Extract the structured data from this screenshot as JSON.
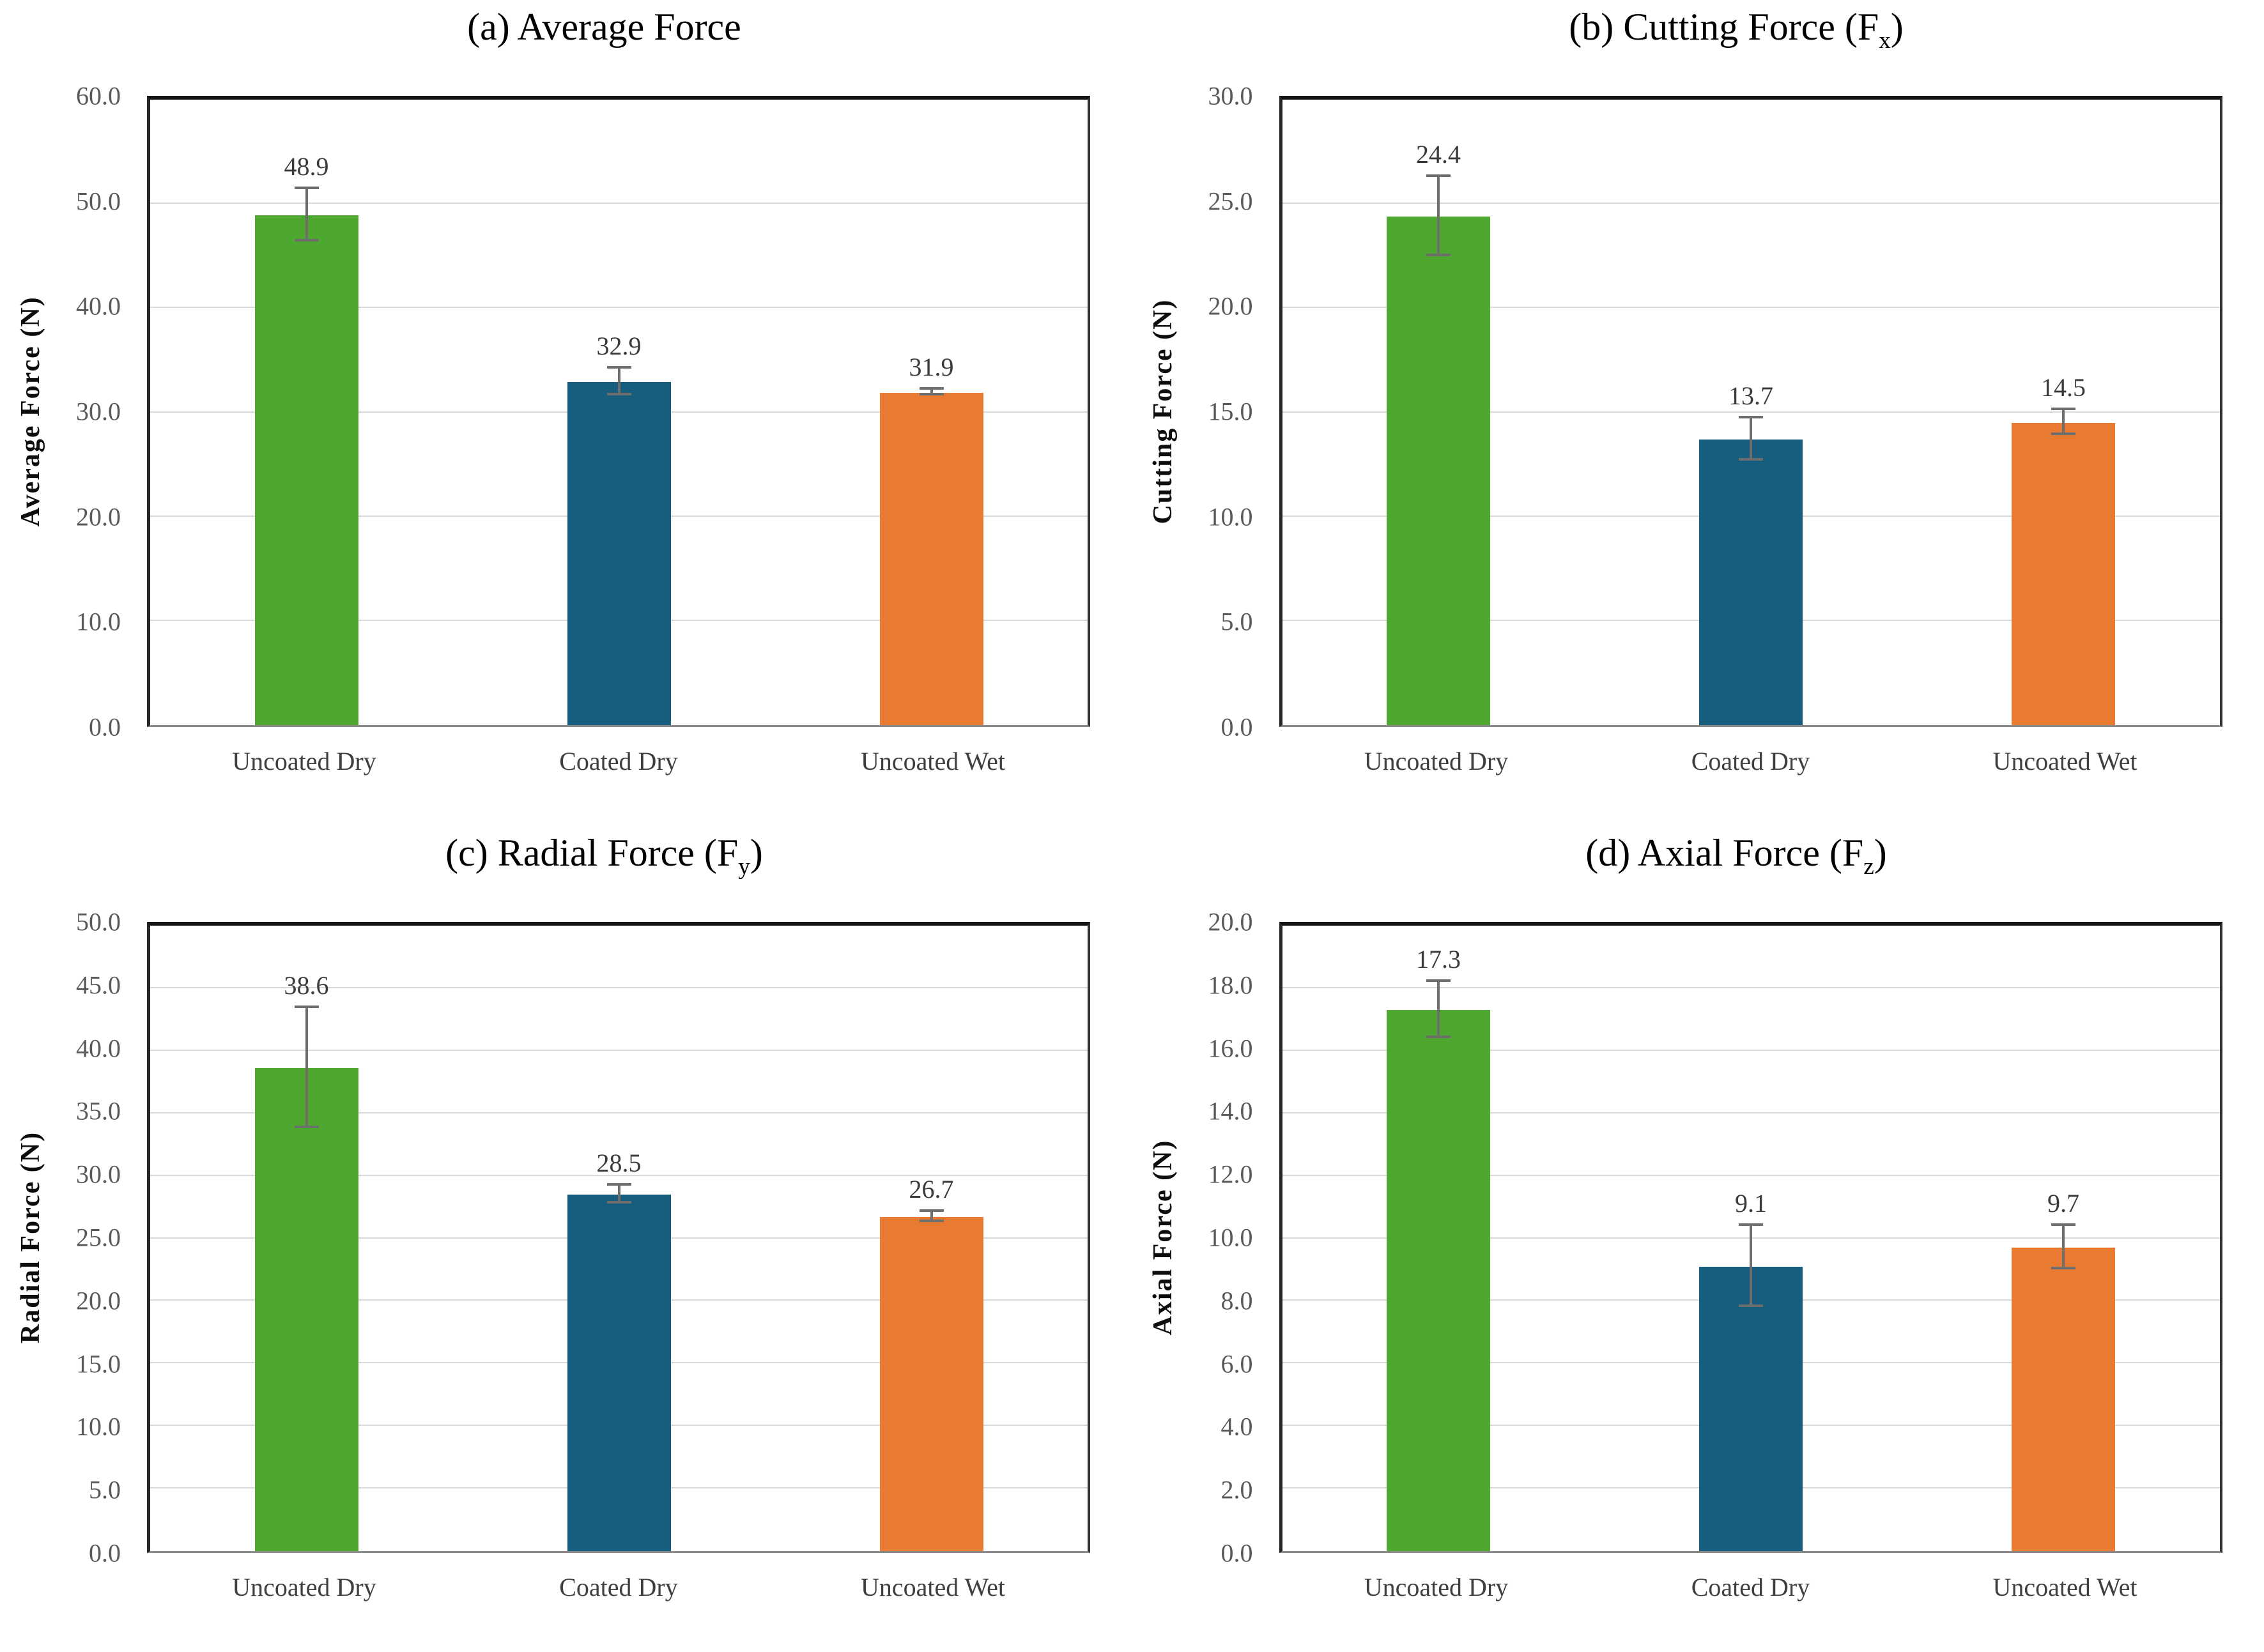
{
  "page": {
    "background": "#ffffff"
  },
  "colors": {
    "series": [
      "#4EA72E",
      "#175E7E",
      "#E97A31"
    ],
    "error_bar": "#6E6E6E",
    "gridline": "#D9D9D9",
    "tick_label": "#595959",
    "category_label": "#3F3F3F",
    "value_label": "#3B3B3B",
    "title": "#000000"
  },
  "chart_data": [
    {
      "type": "bar",
      "panel": "a",
      "title": "(a) Average Force",
      "title_prefix": "(a) Average Force",
      "title_sub": "",
      "title_suffix": "",
      "ylabel": "Average Force (N)",
      "xlabel": "",
      "ylim": [
        0,
        60
      ],
      "ytick_step": 10,
      "ytick_labels": [
        "0.0",
        "10.0",
        "20.0",
        "30.0",
        "40.0",
        "50.0",
        "60.0"
      ],
      "categories": [
        "Uncoated Dry",
        "Coated Dry",
        "Uncoated Wet"
      ],
      "values": [
        48.9,
        32.9,
        31.9
      ],
      "value_labels": [
        "48.9",
        "32.9",
        "31.9"
      ],
      "errors": [
        2.5,
        1.3,
        0.3
      ],
      "grid": true,
      "legend": "none"
    },
    {
      "type": "bar",
      "panel": "b",
      "title": "(b) Cutting Force (Fx)",
      "title_prefix": "(b) Cutting Force (F",
      "title_sub": "x",
      "title_suffix": ")",
      "ylabel": "Cutting Force (N)",
      "xlabel": "",
      "ylim": [
        0,
        30
      ],
      "ytick_step": 5,
      "ytick_labels": [
        "0.0",
        "5.0",
        "10.0",
        "15.0",
        "20.0",
        "25.0",
        "30.0"
      ],
      "categories": [
        "Uncoated Dry",
        "Coated Dry",
        "Uncoated Wet"
      ],
      "values": [
        24.4,
        13.7,
        14.5
      ],
      "value_labels": [
        "24.4",
        "13.7",
        "14.5"
      ],
      "errors": [
        1.9,
        1.0,
        0.6
      ],
      "grid": true,
      "legend": "none"
    },
    {
      "type": "bar",
      "panel": "c",
      "title": "(c) Radial Force (Fy)",
      "title_prefix": "(c) Radial Force (F",
      "title_sub": "y",
      "title_suffix": ")",
      "ylabel": "Radial Force (N)",
      "xlabel": "",
      "ylim": [
        0,
        50
      ],
      "ytick_step": 5,
      "ytick_labels": [
        "0.0",
        "5.0",
        "10.0",
        "15.0",
        "20.0",
        "25.0",
        "30.0",
        "35.0",
        "40.0",
        "45.0",
        "50.0"
      ],
      "categories": [
        "Uncoated Dry",
        "Coated Dry",
        "Uncoated Wet"
      ],
      "values": [
        38.6,
        28.5,
        26.7
      ],
      "value_labels": [
        "38.6",
        "28.5",
        "26.7"
      ],
      "errors": [
        4.8,
        0.7,
        0.4
      ],
      "grid": true,
      "legend": "none"
    },
    {
      "type": "bar",
      "panel": "d",
      "title": "(d) Axial Force (Fz)",
      "title_prefix": "(d) Axial Force (F",
      "title_sub": "z",
      "title_suffix": ")",
      "ylabel": "Axial Force (N)",
      "xlabel": "",
      "ylim": [
        0,
        20
      ],
      "ytick_step": 2,
      "ytick_labels": [
        "0.0",
        "2.0",
        "4.0",
        "6.0",
        "8.0",
        "10.0",
        "12.0",
        "14.0",
        "16.0",
        "18.0",
        "20.0"
      ],
      "categories": [
        "Uncoated Dry",
        "Coated Dry",
        "Uncoated Wet"
      ],
      "values": [
        17.3,
        9.1,
        9.7
      ],
      "value_labels": [
        "17.3",
        "9.1",
        "9.7"
      ],
      "errors": [
        0.9,
        1.3,
        0.7
      ],
      "grid": true,
      "legend": "none"
    }
  ]
}
